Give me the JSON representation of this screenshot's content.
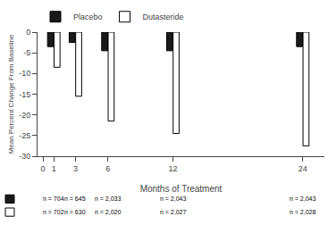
{
  "chart_data": {
    "type": "bar",
    "xlabel": "Months of Treatment",
    "ylabel": "Mean Percent Change From Baseline",
    "x": [
      1,
      3,
      6,
      12,
      24
    ],
    "series": [
      {
        "name": "Placebo",
        "color": "#1a1a1a",
        "values": [
          -3.5,
          -2.5,
          -4.5,
          -4.5,
          -3.5
        ],
        "n_labels": [
          "n = 704",
          "n = 645",
          "n = 2,033",
          "n = 2,043",
          "n = 2,043"
        ]
      },
      {
        "name": "Dutasteride",
        "color": "#ffffff",
        "values": [
          -8.5,
          -15.5,
          -21.5,
          -24.5,
          -27.5
        ],
        "n_labels": [
          "n = 702",
          "n = 630",
          "n = 2,020",
          "n = 2,027",
          "n = 2,028"
        ]
      }
    ],
    "xlim": [
      -0.5,
      26
    ],
    "xticks": [
      0,
      1,
      3,
      6,
      12,
      24
    ],
    "ylim": [
      -30,
      0
    ],
    "yticks": [
      0,
      -5,
      -10,
      -15,
      -20,
      -25,
      -30
    ],
    "grid": false
  }
}
